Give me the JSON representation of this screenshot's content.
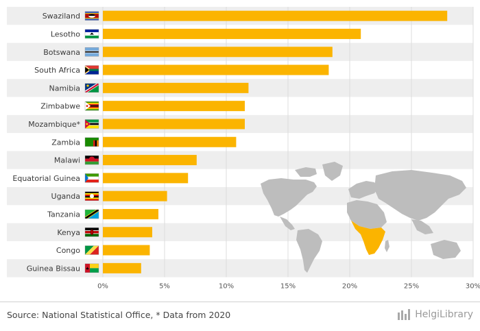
{
  "chart_data": {
    "type": "bar",
    "orientation": "horizontal",
    "categories": [
      "Swaziland",
      "Lesotho",
      "Botswana",
      "South Africa",
      "Namibia",
      "Zimbabwe",
      "Mozambique*",
      "Zambia",
      "Malawi",
      "Equatorial Guinea",
      "Uganda",
      "Tanzania",
      "Kenya",
      "Congo",
      "Guinea Bissau"
    ],
    "values": [
      27.9,
      20.9,
      18.6,
      18.3,
      11.8,
      11.5,
      11.5,
      10.8,
      7.6,
      6.9,
      5.2,
      4.5,
      4.0,
      3.8,
      3.1
    ],
    "xlim": [
      0,
      30
    ],
    "xticks": [
      "0%",
      "5%",
      "10%",
      "15%",
      "20%",
      "25%",
      "30%"
    ],
    "bar_color": "#FBB400",
    "grid": true,
    "row_stripes": true,
    "flags": [
      "swaziland-flag-icon",
      "lesotho-flag-icon",
      "botswana-flag-icon",
      "south-africa-flag-icon",
      "namibia-flag-icon",
      "zimbabwe-flag-icon",
      "mozambique-flag-icon",
      "zambia-flag-icon",
      "malawi-flag-icon",
      "equatorial-guinea-flag-icon",
      "uganda-flag-icon",
      "tanzania-flag-icon",
      "kenya-flag-icon",
      "congo-flag-icon",
      "guinea-bissau-flag-icon"
    ]
  },
  "footer": {
    "source": "Source: National Statistical Office, * Data from 2020",
    "logo": "HelgiLibrary"
  }
}
